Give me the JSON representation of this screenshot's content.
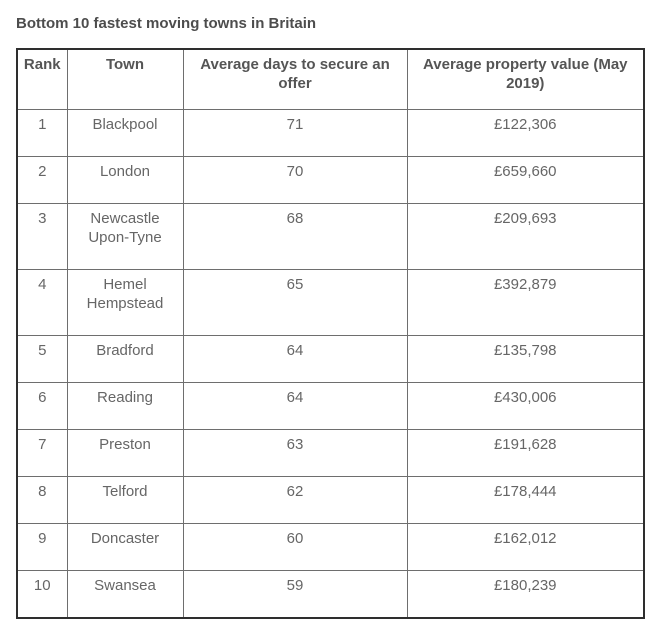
{
  "page": {
    "title": "Bottom 10 fastest moving towns in Britain"
  },
  "colors": {
    "background": "#ffffff",
    "title_text": "#4d4d4d",
    "header_text": "#555555",
    "cell_text": "#666666",
    "border_outer": "#2e2e2e",
    "border_inner": "#6e6e6e"
  },
  "chart_data": {
    "type": "table",
    "title": "Bottom 10 fastest moving towns in Britain",
    "columns": [
      "Rank",
      "Town",
      "Average days to secure an offer",
      "Average property value (May 2019)"
    ],
    "rows": [
      [
        "1",
        "Blackpool",
        "71",
        "£122,306"
      ],
      [
        "2",
        "London",
        "70",
        "£659,660"
      ],
      [
        "3",
        "Newcastle Upon-Tyne",
        "68",
        "£209,693"
      ],
      [
        "4",
        "Hemel Hempstead",
        "65",
        "£392,879"
      ],
      [
        "5",
        "Bradford",
        "64",
        "£135,798"
      ],
      [
        "6",
        "Reading",
        "64",
        "£430,006"
      ],
      [
        "7",
        "Preston",
        "63",
        "£191,628"
      ],
      [
        "8",
        "Telford",
        "62",
        "£178,444"
      ],
      [
        "9",
        "Doncaster",
        "60",
        "£162,012"
      ],
      [
        "10",
        "Swansea",
        "59",
        "£180,239"
      ]
    ],
    "layout": {
      "legend": "none",
      "grid": "full-borders",
      "header_rows": 1
    }
  }
}
